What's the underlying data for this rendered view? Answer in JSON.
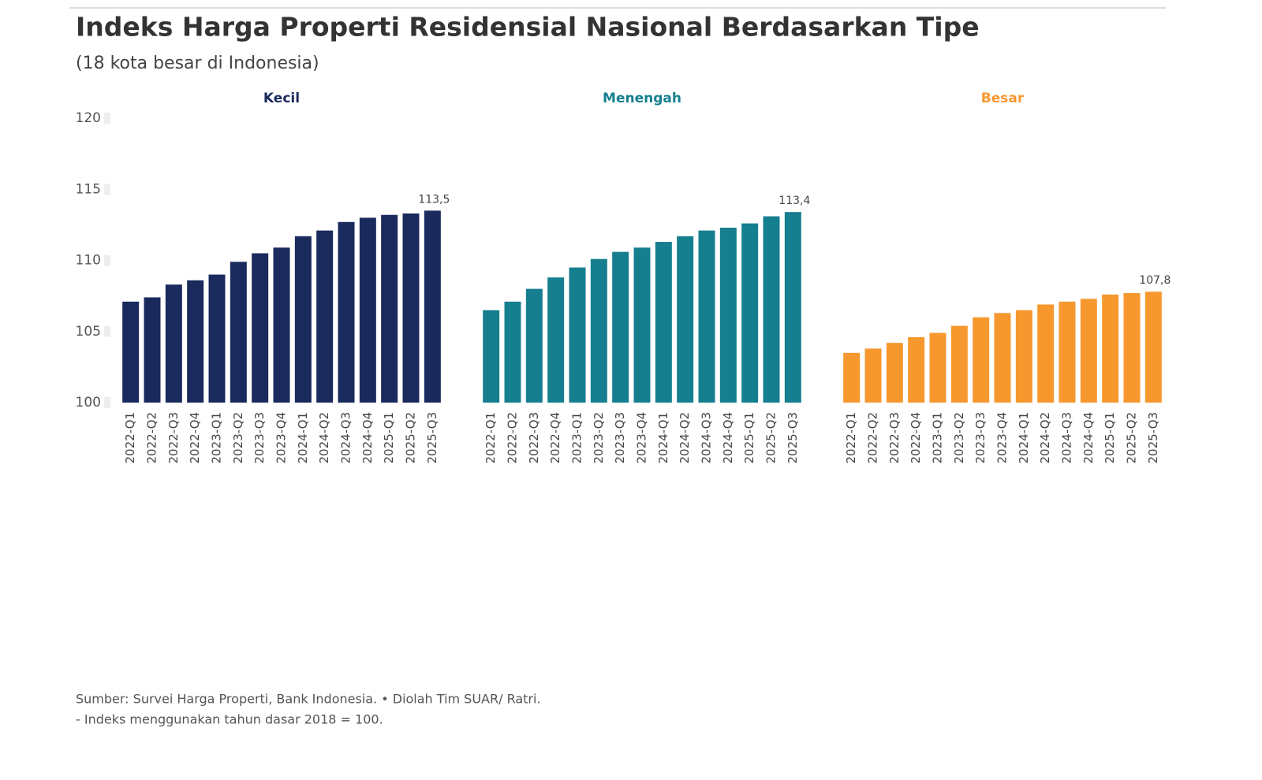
{
  "title": "Indeks Harga Properti Residensial Nasional Berdasarkan Tipe",
  "subtitle": "(18 kota besar di Indonesia)",
  "notes": [
    "Sumber: Survei Harga Properti, Bank Indonesia. • Diolah Tim SUAR/ Ratri.",
    "- Indeks menggunakan tahun dasar 2018 = 100."
  ],
  "chart_data": [
    {
      "type": "bar",
      "title": "Kecil",
      "color": "#1b2a5c",
      "categories": [
        "2022-Q1",
        "2022-Q2",
        "2022-Q3",
        "2022-Q4",
        "2023-Q1",
        "2023-Q2",
        "2023-Q3",
        "2023-Q4",
        "2024-Q1",
        "2024-Q2",
        "2024-Q3",
        "2024-Q4",
        "2025-Q1",
        "2025-Q2",
        "2025-Q3"
      ],
      "values": [
        107.1,
        107.4,
        108.3,
        108.6,
        109.0,
        109.9,
        110.5,
        110.9,
        111.7,
        112.1,
        112.7,
        113.0,
        113.2,
        113.3,
        113.5
      ],
      "value_labels": [
        null,
        null,
        null,
        null,
        null,
        null,
        null,
        null,
        null,
        null,
        null,
        null,
        null,
        null,
        "113,5"
      ],
      "ylim": [
        100,
        120
      ],
      "yticks": [
        100,
        105,
        110,
        115,
        120
      ]
    },
    {
      "type": "bar",
      "title": "Menengah",
      "color": "#167f8f",
      "categories": [
        "2022-Q1",
        "2022-Q2",
        "2022-Q3",
        "2022-Q4",
        "2023-Q1",
        "2023-Q2",
        "2023-Q3",
        "2023-Q4",
        "2024-Q1",
        "2024-Q2",
        "2024-Q3",
        "2024-Q4",
        "2025-Q1",
        "2025-Q2",
        "2025-Q3"
      ],
      "values": [
        106.5,
        107.1,
        108.0,
        108.8,
        109.5,
        110.1,
        110.6,
        110.9,
        111.3,
        111.7,
        112.1,
        112.3,
        112.6,
        113.1,
        113.4
      ],
      "value_labels": [
        null,
        null,
        null,
        null,
        null,
        null,
        null,
        null,
        null,
        null,
        null,
        null,
        null,
        null,
        "113,4"
      ],
      "ylim": [
        100,
        120
      ]
    },
    {
      "type": "bar",
      "title": "Besar",
      "color": "#f7982f",
      "categories": [
        "2022-Q1",
        "2022-Q2",
        "2022-Q3",
        "2022-Q4",
        "2023-Q1",
        "2023-Q2",
        "2023-Q3",
        "2023-Q4",
        "2024-Q1",
        "2024-Q2",
        "2024-Q3",
        "2024-Q4",
        "2025-Q1",
        "2025-Q2",
        "2025-Q3"
      ],
      "values": [
        103.5,
        103.8,
        104.2,
        104.6,
        104.9,
        105.4,
        106.0,
        106.3,
        106.5,
        106.9,
        107.1,
        107.3,
        107.6,
        107.7,
        107.8
      ],
      "value_labels": [
        null,
        null,
        null,
        null,
        null,
        null,
        null,
        null,
        null,
        null,
        null,
        null,
        null,
        null,
        "107,8"
      ],
      "ylim": [
        100,
        120
      ]
    }
  ]
}
